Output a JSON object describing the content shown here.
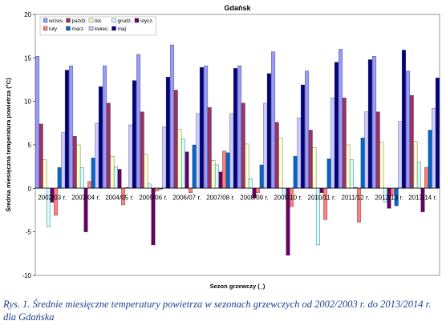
{
  "chart_data": {
    "type": "bar",
    "title": "Gdańsk",
    "xlabel": "Sezon grzewczy (_)",
    "ylabel": "Średnia miesięczna temperatura powietrza (°C)",
    "ylim": [
      -10,
      20
    ],
    "yticks": [
      -10,
      -5,
      0,
      5,
      10,
      15,
      20
    ],
    "grid": false,
    "legend_position": "top-left",
    "categories": [
      "2002/03 r.",
      "2003/04 r.",
      "2004/05 r.",
      "2005/06 r.",
      "2006/07 r.",
      "2007/08 r.",
      "2008/09 r.",
      "2009/10 r.",
      "2010/11 r.",
      "2011/12 r.",
      "2012/13 r.",
      "2013/14 r."
    ],
    "series": [
      {
        "name": "wrzes.",
        "color": "#9999ff",
        "values": [
          15.2,
          14.1,
          14.1,
          15.4,
          16.5,
          14.1,
          14.1,
          15.7,
          13.5,
          16.0,
          15.2,
          13.5
        ]
      },
      {
        "name": "paźdz.",
        "color": "#993366",
        "values": [
          7.4,
          6.0,
          9.8,
          8.8,
          11.3,
          9.3,
          9.8,
          7.6,
          6.7,
          10.4,
          8.8,
          10.7
        ]
      },
      {
        "name": "list.",
        "color": "#ffffcc",
        "values": [
          3.3,
          5.0,
          3.7,
          3.9,
          6.8,
          3.2,
          5.1,
          5.8,
          4.7,
          5.0,
          5.3,
          5.4
        ]
      },
      {
        "name": "grudz.",
        "color": "#ccffff",
        "values": [
          -4.4,
          2.4,
          2.5,
          0.5,
          5.7,
          2.7,
          1.1,
          -0.8,
          -6.5,
          3.3,
          -1.6,
          3.0
        ]
      },
      {
        "name": "stycz.",
        "color": "#660066",
        "values": [
          -1.6,
          -5.0,
          2.2,
          -6.5,
          4.2,
          1.9,
          -1.1,
          -7.7,
          -0.5,
          0.1,
          -2.3,
          -2.7
        ]
      },
      {
        "name": "luty",
        "color": "#ff8080",
        "values": [
          -3.1,
          0.8,
          -1.9,
          -0.3,
          -0.5,
          4.3,
          -0.5,
          -2.1,
          -3.6,
          -3.9,
          -0.8,
          2.4
        ]
      },
      {
        "name": "marz.",
        "color": "#0066cc",
        "values": [
          2.4,
          3.5,
          0.1,
          -0.1,
          5.0,
          4.1,
          2.7,
          3.7,
          3.4,
          5.8,
          -2.0,
          6.7
        ]
      },
      {
        "name": "kwiec.",
        "color": "#ccccff",
        "values": [
          6.4,
          7.5,
          7.3,
          7.1,
          8.6,
          8.6,
          9.8,
          8.1,
          10.4,
          8.8,
          7.7,
          9.2
        ]
      },
      {
        "name": "maj",
        "color": "#000080",
        "values": [
          13.6,
          11.7,
          12.4,
          12.8,
          13.9,
          13.8,
          13.2,
          11.9,
          14.5,
          14.8,
          15.9,
          12.7
        ]
      }
    ]
  },
  "caption": {
    "text": "Rys. 1. Średnie miesięczne temperatury powietrza w sezonach grzewczych od 2002/2003 r. do 2013/2014 r. dla Gdańska"
  }
}
